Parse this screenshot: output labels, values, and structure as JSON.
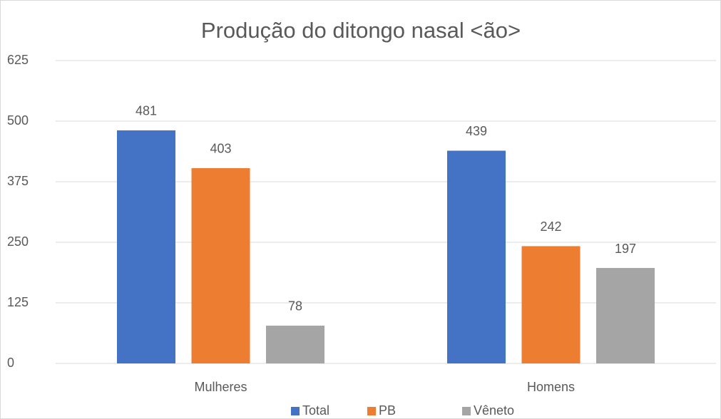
{
  "chart_data": {
    "type": "bar",
    "title": "Produção do ditongo nasal <ão>",
    "categories": [
      "Mulheres",
      "Homens"
    ],
    "series": [
      {
        "name": "Total",
        "color": "#4472c4",
        "values": [
          481,
          439
        ]
      },
      {
        "name": "PB",
        "color": "#ed7d31",
        "values": [
          403,
          242
        ]
      },
      {
        "name": "Vêneto",
        "color": "#a5a5a5",
        "values": [
          78,
          197
        ]
      }
    ],
    "ylim": [
      0,
      625
    ],
    "yticks": [
      0,
      125,
      250,
      375,
      500,
      625
    ],
    "grid": true,
    "legend": "bottom"
  }
}
